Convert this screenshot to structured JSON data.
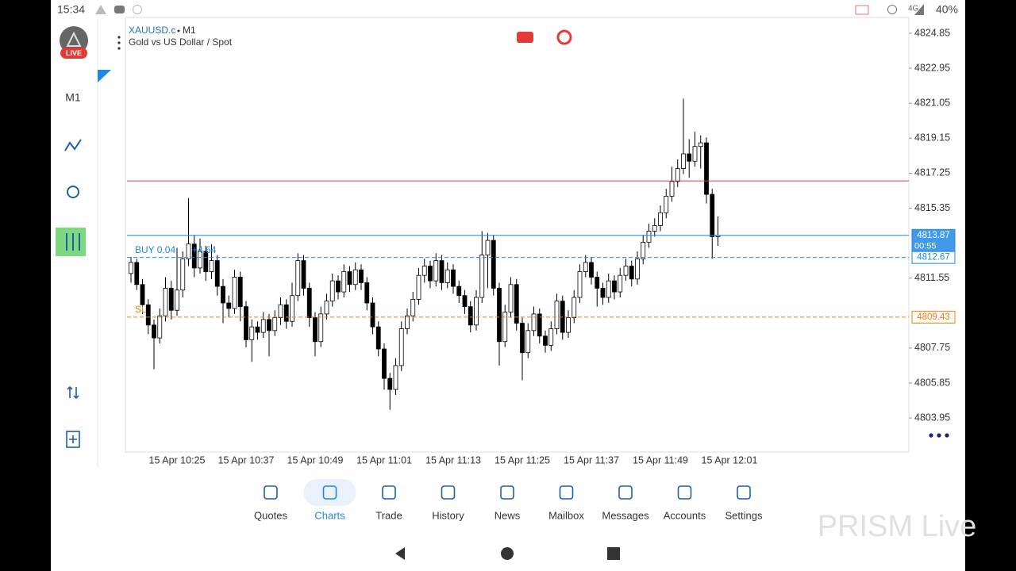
{
  "status_bar": {
    "time": "15:34",
    "network": "4G",
    "battery": "40%"
  },
  "sidebar": {
    "live": "LIVE",
    "timeframe": "M1"
  },
  "chart_data": {
    "type": "candlestick",
    "symbol": "XAUUSD.c",
    "timeframe": "M1",
    "subtitle": "Gold vs US Dollar / Spot",
    "categories": [
      null,
      null,
      null,
      null,
      null,
      null,
      null,
      null,
      "15 Apr 10:25",
      null,
      null,
      null,
      null,
      null,
      null,
      null,
      null,
      null,
      null,
      null,
      "15 Apr 10:37",
      null,
      null,
      null,
      null,
      null,
      null,
      null,
      null,
      null,
      null,
      null,
      "15 Apr 10:49",
      null,
      null,
      null,
      null,
      null,
      null,
      null,
      null,
      null,
      null,
      null,
      "15 Apr 11:01",
      null,
      null,
      null,
      null,
      null,
      null,
      null,
      null,
      null,
      null,
      null,
      "15 Apr 11:13",
      null,
      null,
      null,
      null,
      null,
      null,
      null,
      null,
      null,
      null,
      null,
      "15 Apr 11:25",
      null,
      null,
      null,
      null,
      null,
      null,
      null,
      null,
      null,
      null,
      null,
      "15 Apr 11:37",
      null,
      null,
      null,
      null,
      null,
      null,
      null,
      null,
      null,
      null,
      null,
      "15 Apr 11:49",
      null,
      null,
      null,
      null,
      null,
      null,
      null,
      null,
      null,
      null,
      null,
      "15 Apr 12:01"
    ],
    "open": [
      4811.8,
      4812.4,
      4811.2,
      4810.1,
      4809.0,
      4808.3,
      4809.5,
      4811.0,
      4809.8,
      4810.9,
      4812.6,
      4813.4,
      4812.1,
      4813.0,
      4811.9,
      4812.5,
      4811.1,
      4810.2,
      4809.9,
      4811.6,
      4810.0,
      4808.2,
      4808.9,
      4808.6,
      4809.3,
      4808.7,
      4809.4,
      4810.1,
      4809.2,
      4810.6,
      4812.5,
      4811.0,
      4809.4,
      4808.1,
      4809.6,
      4810.3,
      4811.4,
      4810.8,
      4811.9,
      4811.2,
      4812.0,
      4811.3,
      4810.2,
      4808.9,
      4807.7,
      4806.1,
      4805.5,
      4806.8,
      4808.8,
      4809.5,
      4810.4,
      4811.7,
      4812.2,
      4811.4,
      4812.5,
      4811.3,
      4812.0,
      4811.1,
      4810.6,
      4810.0,
      4809.0,
      4810.5,
      4812.8,
      4813.6,
      4811.0,
      4808.1,
      4809.7,
      4811.2,
      4809.1,
      4807.5,
      4808.7,
      4809.6,
      4808.4,
      4807.9,
      4808.8,
      4810.3,
      4808.6,
      4809.4,
      4810.5,
      4811.9,
      4812.4,
      4811.6,
      4811.0,
      4810.5,
      4811.4,
      4810.8,
      4811.7,
      4812.2,
      4811.5,
      4812.6,
      4813.5,
      4814.1,
      4814.4,
      4815.1,
      4816.0,
      4816.8,
      4817.5,
      4818.3,
      4817.9,
      4818.7,
      4818.9,
      4816.1,
      4813.8,
      null,
      null
    ],
    "high": [
      4812.7,
      4812.6,
      4811.5,
      4810.4,
      4809.3,
      4809.9,
      4811.6,
      4811.4,
      4813.2,
      4813.0,
      4815.9,
      4813.9,
      4813.7,
      4813.3,
      4813.4,
      4812.8,
      4811.5,
      4810.6,
      4812.0,
      4811.9,
      4810.3,
      4809.3,
      4809.2,
      4809.7,
      4809.6,
      4809.8,
      4810.5,
      4810.4,
      4811.3,
      4812.9,
      4812.8,
      4811.3,
      4809.7,
      4810.0,
      4810.7,
      4811.8,
      4811.7,
      4812.3,
      4812.2,
      4812.4,
      4812.3,
      4811.6,
      4810.5,
      4809.2,
      4808.0,
      4806.4,
      4807.2,
      4809.2,
      4809.9,
      4810.8,
      4812.1,
      4812.6,
      4812.5,
      4812.9,
      4812.8,
      4812.4,
      4812.3,
      4811.4,
      4810.9,
      4810.3,
      4810.9,
      4814.1,
      4814.0,
      4813.9,
      4811.3,
      4810.1,
      4811.6,
      4811.5,
      4809.4,
      4809.1,
      4810.0,
      4809.9,
      4808.7,
      4809.2,
      4810.7,
      4810.6,
      4809.8,
      4810.9,
      4812.3,
      4812.8,
      4812.7,
      4811.9,
      4811.3,
      4811.8,
      4811.7,
      4812.1,
      4812.6,
      4812.5,
      4813.0,
      4813.9,
      4814.5,
      4814.8,
      4815.5,
      4816.4,
      4817.6,
      4818.0,
      4821.3,
      4819.1,
      4819.5,
      4819.3,
      4819.2,
      4816.4,
      4814.9,
      null,
      null
    ],
    "low": [
      4811.3,
      4810.9,
      4809.6,
      4808.5,
      4806.6,
      4808.0,
      4809.2,
      4809.3,
      4809.5,
      4810.5,
      4812.2,
      4811.6,
      4811.8,
      4811.4,
      4811.5,
      4810.6,
      4809.1,
      4809.4,
      4809.6,
      4809.2,
      4807.8,
      4807.0,
      4808.2,
      4808.3,
      4807.3,
      4808.4,
      4809.0,
      4808.8,
      4808.9,
      4810.3,
      4810.6,
      4808.9,
      4807.3,
      4807.8,
      4809.3,
      4810.0,
      4810.4,
      4810.5,
      4810.8,
      4810.9,
      4810.9,
      4809.8,
      4808.5,
      4807.3,
      4805.5,
      4804.4,
      4805.2,
      4806.5,
      4808.5,
      4809.2,
      4810.1,
      4811.3,
      4811.0,
      4811.1,
      4810.9,
      4811.0,
      4810.7,
      4810.2,
      4809.6,
      4808.6,
      4808.7,
      4810.2,
      4811.0,
      4810.6,
      4806.8,
      4807.8,
      4809.4,
      4808.7,
      4806.0,
      4807.2,
      4808.4,
      4808.0,
      4807.5,
      4807.6,
      4808.5,
      4808.2,
      4808.3,
      4809.1,
      4810.2,
      4811.6,
      4811.2,
      4810.0,
      4810.1,
      4810.2,
      4810.4,
      4810.5,
      4811.4,
      4811.1,
      4811.2,
      4812.3,
      4813.2,
      4813.8,
      4814.1,
      4814.8,
      4815.7,
      4816.5,
      4817.2,
      4817.0,
      4817.6,
      4817.5,
      4815.6,
      4812.6,
      4813.3,
      null,
      null
    ],
    "close": [
      4812.4,
      4811.2,
      4810.1,
      4809.0,
      4808.3,
      4809.5,
      4811.0,
      4809.8,
      4810.9,
      4812.6,
      4813.4,
      4812.1,
      4813.0,
      4811.9,
      4812.5,
      4811.1,
      4810.2,
      4809.9,
      4811.6,
      4810.0,
      4808.2,
      4808.9,
      4808.6,
      4809.3,
      4808.7,
      4809.4,
      4810.1,
      4809.2,
      4810.6,
      4812.5,
      4811.0,
      4809.4,
      4808.1,
      4809.6,
      4810.3,
      4811.4,
      4810.8,
      4811.9,
      4811.2,
      4812.0,
      4811.3,
      4810.2,
      4808.9,
      4807.7,
      4806.1,
      4805.5,
      4806.8,
      4808.8,
      4809.5,
      4810.4,
      4811.7,
      4812.2,
      4811.4,
      4812.5,
      4811.3,
      4812.0,
      4811.1,
      4810.6,
      4810.0,
      4809.0,
      4810.5,
      4812.8,
      4813.6,
      4811.0,
      4808.1,
      4809.7,
      4811.2,
      4809.1,
      4807.5,
      4808.7,
      4809.6,
      4808.4,
      4807.9,
      4808.8,
      4810.3,
      4808.6,
      4809.4,
      4810.5,
      4811.9,
      4812.4,
      4811.6,
      4811.0,
      4810.5,
      4811.4,
      4810.8,
      4811.7,
      4812.2,
      4811.5,
      4812.6,
      4813.5,
      4814.1,
      4814.4,
      4815.1,
      4816.0,
      4816.8,
      4817.5,
      4818.3,
      4817.9,
      4818.7,
      4818.9,
      4816.1,
      4813.8,
      4813.87,
      null,
      null
    ],
    "up_color": "#ffffff",
    "down_color": "#000000",
    "outline_color": "#000000",
    "ylim": [
      4802.1,
      4825.71
    ],
    "yticks": [
      4824.85,
      4822.95,
      4821.05,
      4819.15,
      4817.25,
      4815.35,
      4811.55,
      4807.75,
      4805.85,
      4803.95
    ],
    "levels": [
      {
        "value": 4816.83,
        "color": "#e53935",
        "style": "solid",
        "price_tag": false
      },
      {
        "value": 4813.87,
        "color": "#1e88e5",
        "style": "solid",
        "price_tag": true,
        "countdown": "00:55"
      },
      {
        "value": 4812.67,
        "color": "#1e88e5",
        "style": "dashed",
        "price_tag": true,
        "order": "BUY 0.04",
        "profit": "+4.64"
      },
      {
        "value": 4809.43,
        "color": "#f57c00",
        "style": "dashed",
        "price_tag": true,
        "order": "SL"
      }
    ]
  },
  "bottom_nav": {
    "active": 1,
    "items": [
      "Quotes",
      "Charts",
      "Trade",
      "History",
      "News",
      "Mailbox",
      "Messages",
      "Accounts",
      "Settings"
    ]
  },
  "watermark": "PRISM Live"
}
